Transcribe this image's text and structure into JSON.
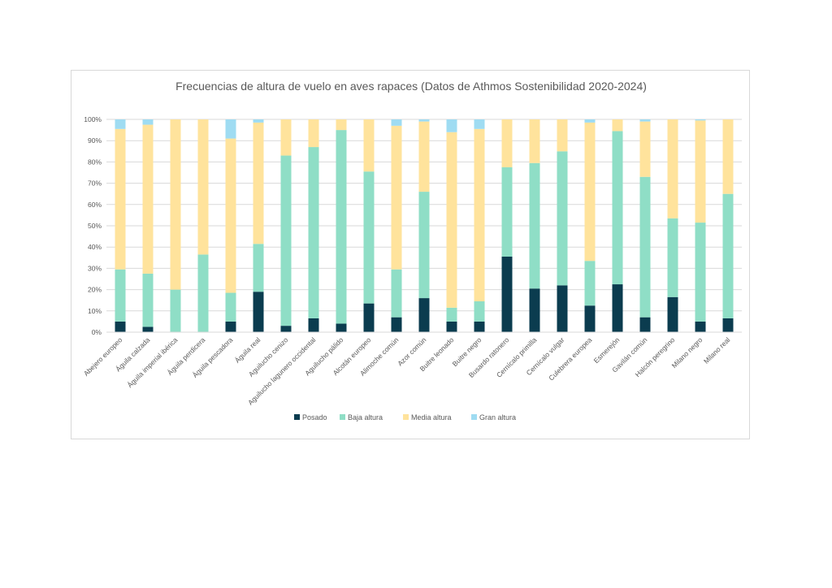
{
  "chart_data": {
    "type": "bar",
    "stacked": true,
    "percent": true,
    "title": "Frecuencias de altura de vuelo en aves rapaces (Datos de Athmos Sostenibilidad 2020-2024)",
    "xlabel": "",
    "ylabel": "",
    "ylim": [
      0,
      100
    ],
    "y_ticks": [
      "0%",
      "10%",
      "20%",
      "30%",
      "40%",
      "50%",
      "60%",
      "70%",
      "80%",
      "90%",
      "100%"
    ],
    "grid": true,
    "legend_position": "bottom",
    "categories": [
      "Abejero europeo",
      "Águila calzada",
      "Águila imperial ibérica",
      "Águila perdicera",
      "Águila pescadora",
      "Águila real",
      "Aguilucho cenizo",
      "Aguilucho lagunero occidental",
      "Aguilucho pálido",
      "Alcotán europeo",
      "Alimoche común",
      "Azor común",
      "Buitre leonado",
      "Buitre negro",
      "Busardo ratonero",
      "Cernícalo primilla",
      "Cernícalo vulgar",
      "Culebrera europea",
      "Esmerejón",
      "Gavilán común",
      "Halcón peregrino",
      "Milano negro",
      "Milano real"
    ],
    "series": [
      {
        "name": "Posado",
        "color": "#0b3c4f",
        "values": [
          5,
          2.5,
          0,
          0,
          5,
          19,
          3,
          6.5,
          4,
          13.5,
          7,
          16,
          5,
          5,
          35.5,
          20.5,
          22,
          12.5,
          22.5,
          7,
          16.5,
          5,
          6.5
        ]
      },
      {
        "name": "Baja altura",
        "color": "#8fdec6",
        "values": [
          24.5,
          25,
          20,
          36.5,
          13.5,
          22.5,
          80,
          80.5,
          91,
          62,
          22.5,
          50,
          6.5,
          9.5,
          42,
          59,
          63,
          21,
          72,
          66,
          37,
          46.5,
          58.5
        ]
      },
      {
        "name": "Media altura",
        "color": "#ffe39c",
        "values": [
          66,
          70,
          80,
          63.5,
          72.5,
          57,
          17,
          13,
          5,
          24.5,
          67.5,
          33,
          82.5,
          81,
          22.5,
          20.5,
          15,
          65,
          5.5,
          26,
          46.5,
          48,
          35
        ]
      },
      {
        "name": "Gran altura",
        "color": "#9fdcf2",
        "values": [
          4.5,
          2.5,
          0,
          0,
          9,
          1.5,
          0,
          0,
          0,
          0,
          3,
          1,
          6,
          4.5,
          0,
          0,
          0,
          1.5,
          0,
          1,
          0,
          0.5,
          0
        ]
      }
    ]
  }
}
